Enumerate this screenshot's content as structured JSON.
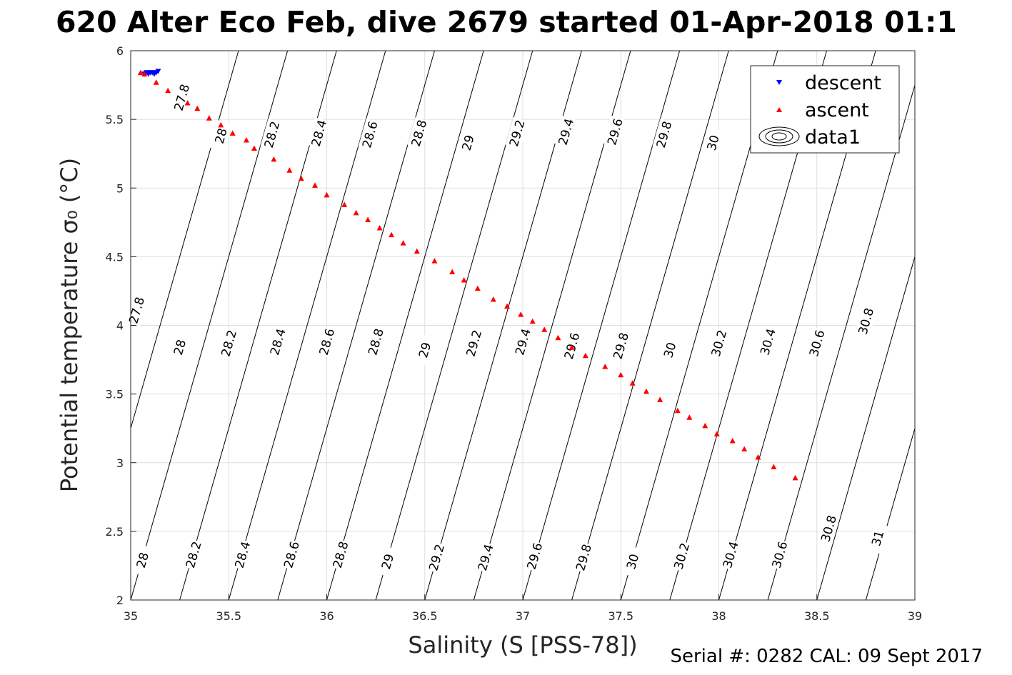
{
  "chart_data": {
    "type": "scatter",
    "title": "620 Alter Eco Feb, dive 2679 started 01-Apr-2018 01:1",
    "xlabel": "Salinity (S [PSS-78])",
    "ylabel": "Potential temperature σ₀ (°C)",
    "xlim": [
      35,
      39
    ],
    "ylim": [
      2,
      6
    ],
    "xticks": [
      "35",
      "35.5",
      "36",
      "36.5",
      "37",
      "37.5",
      "38",
      "38.5",
      "39"
    ],
    "yticks": [
      "2",
      "2.5",
      "3",
      "3.5",
      "4",
      "4.5",
      "5",
      "5.5",
      "6"
    ],
    "grid": true,
    "legend_position": "top-right",
    "legend": [
      "descent",
      "ascent",
      "data1"
    ],
    "footer": "Serial #: 0282  CAL: 09 Sept 2017",
    "series": [
      {
        "name": "descent",
        "marker": "triangle-down",
        "color": "#0000ff",
        "x": [
          35.07,
          35.08,
          35.09,
          35.1,
          35.11,
          35.12,
          35.13,
          35.14
        ],
        "y": [
          5.83,
          5.84,
          5.83,
          5.84,
          5.84,
          5.83,
          5.84,
          5.85
        ]
      },
      {
        "name": "ascent",
        "marker": "triangle-up",
        "color": "#ff0000",
        "x": [
          35.05,
          35.07,
          35.13,
          35.19,
          35.29,
          35.34,
          35.4,
          35.46,
          35.52,
          35.59,
          35.63,
          35.73,
          35.81,
          35.87,
          35.94,
          36.0,
          36.09,
          36.15,
          36.21,
          36.27,
          36.33,
          36.39,
          36.46,
          36.55,
          36.64,
          36.7,
          36.77,
          36.85,
          36.92,
          36.99,
          37.05,
          37.11,
          37.18,
          37.25,
          37.32,
          37.42,
          37.5,
          37.56,
          37.63,
          37.7,
          37.79,
          37.85,
          37.93,
          37.99,
          38.07,
          38.13,
          38.2,
          38.28,
          38.39
        ],
        "y": [
          5.84,
          5.83,
          5.77,
          5.71,
          5.62,
          5.58,
          5.51,
          5.46,
          5.4,
          5.35,
          5.29,
          5.21,
          5.13,
          5.07,
          5.02,
          4.95,
          4.88,
          4.82,
          4.77,
          4.71,
          4.66,
          4.6,
          4.54,
          4.47,
          4.39,
          4.33,
          4.27,
          4.19,
          4.14,
          4.08,
          4.03,
          3.97,
          3.91,
          3.84,
          3.78,
          3.7,
          3.64,
          3.58,
          3.52,
          3.46,
          3.38,
          3.33,
          3.27,
          3.21,
          3.16,
          3.1,
          3.04,
          2.97,
          2.89
        ]
      }
    ],
    "contours": {
      "name": "data1",
      "color": "#000000",
      "levels": [
        "27.8",
        "28",
        "28.2",
        "28.4",
        "28.6",
        "28.8",
        "29",
        "29.2",
        "29.4",
        "29.6",
        "29.8",
        "30",
        "30.2",
        "30.4",
        "30.6",
        "30.8",
        "31"
      ],
      "sigma_ref": 27.8,
      "d_sigma_dS": 0.8,
      "d_sigma_dT": -0.16,
      "inline_labels": [
        {
          "text": "27.8",
          "s": 35.26,
          "t": 5.66
        },
        {
          "text": "28",
          "s": 35.46,
          "t": 5.38
        },
        {
          "text": "28.2",
          "s": 35.72,
          "t": 5.39
        },
        {
          "text": "28.4",
          "s": 35.96,
          "t": 5.4
        },
        {
          "text": "28.6",
          "s": 36.22,
          "t": 5.39
        },
        {
          "text": "28.8",
          "s": 36.47,
          "t": 5.4
        },
        {
          "text": "29",
          "s": 36.72,
          "t": 5.33
        },
        {
          "text": "29.2",
          "s": 36.97,
          "t": 5.4
        },
        {
          "text": "29.4",
          "s": 37.22,
          "t": 5.41
        },
        {
          "text": "29.6",
          "s": 37.47,
          "t": 5.41
        },
        {
          "text": "29.8",
          "s": 37.72,
          "t": 5.39
        },
        {
          "text": "30",
          "s": 37.97,
          "t": 5.33
        },
        {
          "text": "27.8",
          "s": 35.03,
          "t": 4.11
        },
        {
          "text": "28",
          "s": 35.25,
          "t": 3.84
        },
        {
          "text": "28.2",
          "s": 35.5,
          "t": 3.87
        },
        {
          "text": "28.4",
          "s": 35.75,
          "t": 3.88
        },
        {
          "text": "28.6",
          "s": 36.0,
          "t": 3.88
        },
        {
          "text": "28.8",
          "s": 36.25,
          "t": 3.88
        },
        {
          "text": "29",
          "s": 36.5,
          "t": 3.82
        },
        {
          "text": "29.2",
          "s": 36.75,
          "t": 3.87
        },
        {
          "text": "29.4",
          "s": 37.0,
          "t": 3.88
        },
        {
          "text": "29.6",
          "s": 37.25,
          "t": 3.85
        },
        {
          "text": "29.8",
          "s": 37.5,
          "t": 3.85
        },
        {
          "text": "30",
          "s": 37.75,
          "t": 3.82
        },
        {
          "text": "30.2",
          "s": 38.0,
          "t": 3.87
        },
        {
          "text": "30.4",
          "s": 38.25,
          "t": 3.88
        },
        {
          "text": "30.6",
          "s": 38.5,
          "t": 3.87
        },
        {
          "text": "30.8",
          "s": 38.75,
          "t": 4.03
        },
        {
          "text": "28",
          "s": 35.06,
          "t": 2.29
        },
        {
          "text": "28.2",
          "s": 35.32,
          "t": 2.33
        },
        {
          "text": "28.4",
          "s": 35.57,
          "t": 2.33
        },
        {
          "text": "28.6",
          "s": 35.82,
          "t": 2.33
        },
        {
          "text": "28.8",
          "s": 36.07,
          "t": 2.33
        },
        {
          "text": "29",
          "s": 36.31,
          "t": 2.28
        },
        {
          "text": "29.2",
          "s": 36.56,
          "t": 2.31
        },
        {
          "text": "29.4",
          "s": 36.81,
          "t": 2.31
        },
        {
          "text": "29.6",
          "s": 37.06,
          "t": 2.32
        },
        {
          "text": "29.8",
          "s": 37.31,
          "t": 2.31
        },
        {
          "text": "30",
          "s": 37.56,
          "t": 2.28
        },
        {
          "text": "30.2",
          "s": 37.81,
          "t": 2.32
        },
        {
          "text": "30.4",
          "s": 38.06,
          "t": 2.33
        },
        {
          "text": "30.6",
          "s": 38.31,
          "t": 2.33
        },
        {
          "text": "30.8",
          "s": 38.56,
          "t": 2.52
        },
        {
          "text": "31",
          "s": 38.81,
          "t": 2.45
        }
      ]
    }
  }
}
